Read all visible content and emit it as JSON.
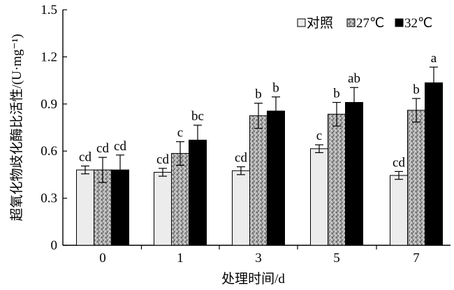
{
  "chart_data": {
    "type": "bar",
    "categories": [
      "0",
      "1",
      "3",
      "5",
      "7"
    ],
    "xlabel": "处理时间/d",
    "ylabel": "超氧化物歧化酶比活性/(U·mg⁻¹)",
    "ylim": [
      0,
      1.5
    ],
    "yticks": [
      "0",
      "0.3",
      "0.6",
      "0.9",
      "1.2",
      "1.5"
    ],
    "legend_position": "top-right",
    "series": [
      {
        "name": "对照",
        "color": "#ececec",
        "pattern": "solid-light",
        "values": [
          0.48,
          0.465,
          0.475,
          0.615,
          0.445
        ],
        "errors": [
          0.025,
          0.025,
          0.025,
          0.025,
          0.025
        ],
        "labels": [
          "cd",
          "cd",
          "cd",
          "c",
          "cd"
        ]
      },
      {
        "name": "27℃",
        "color": "#9a9a9a",
        "pattern": "speckled",
        "values": [
          0.48,
          0.585,
          0.825,
          0.835,
          0.86
        ],
        "errors": [
          0.08,
          0.075,
          0.08,
          0.075,
          0.075
        ],
        "labels": [
          "cd",
          "c",
          "b",
          "b",
          "b"
        ]
      },
      {
        "name": "32℃",
        "color": "#000000",
        "pattern": "solid-dark",
        "values": [
          0.48,
          0.67,
          0.855,
          0.91,
          1.035
        ],
        "errors": [
          0.095,
          0.095,
          0.09,
          0.095,
          0.1
        ],
        "labels": [
          "cd",
          "bc",
          "b",
          "ab",
          "a"
        ]
      }
    ]
  }
}
